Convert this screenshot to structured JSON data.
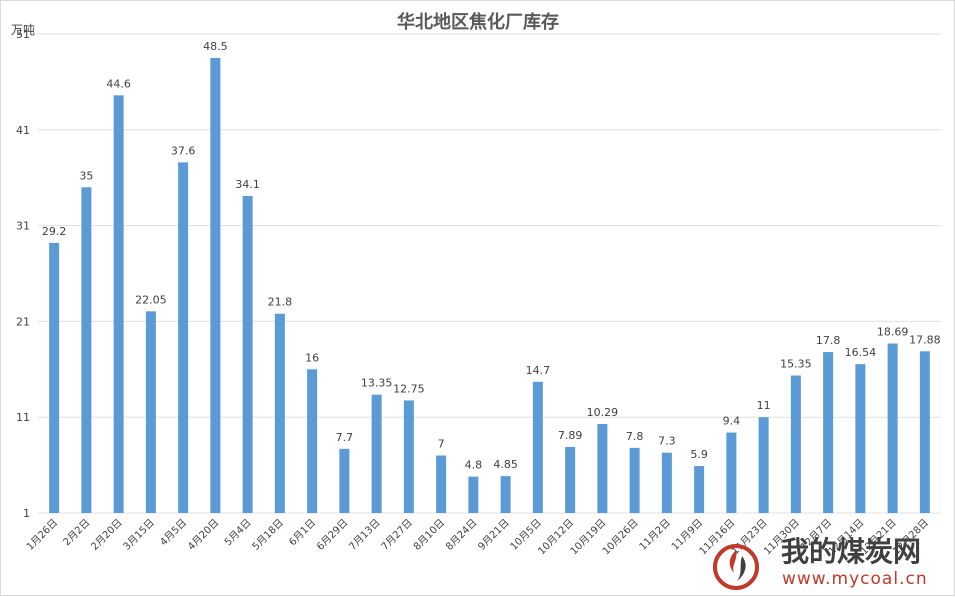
{
  "chart_data": {
    "type": "bar",
    "title": "华北地区焦化厂库存",
    "unit_label": "万吨",
    "ylim": [
      1,
      51
    ],
    "yticks": [
      1,
      11,
      21,
      31,
      41,
      51
    ],
    "grid": true,
    "legend": "none",
    "bar_color": "#5b9bd5",
    "categories": [
      "1月26日",
      "2月2日",
      "2月20日",
      "3月15日",
      "4月5日",
      "4月20日",
      "5月4日",
      "5月18日",
      "6月1日",
      "6月29日",
      "7月13日",
      "7月27日",
      "8月10日",
      "8月24日",
      "9月21日",
      "10月5日",
      "10月12日",
      "10月19日",
      "10月26日",
      "11月2日",
      "11月9日",
      "11月16日",
      "11月23日",
      "11月30日",
      "12月7日",
      "12月14日",
      "12月21日",
      "12月28日"
    ],
    "values": [
      29.2,
      35,
      44.6,
      22.05,
      37.6,
      48.5,
      34.1,
      21.8,
      16,
      7.7,
      13.35,
      12.75,
      7,
      4.8,
      4.85,
      14.7,
      7.89,
      10.29,
      7.8,
      7.3,
      5.9,
      9.4,
      11,
      15.35,
      17.8,
      16.54,
      18.69,
      17.88
    ],
    "value_labels": [
      "29.2",
      "35",
      "44.6",
      "22.05",
      "37.6",
      "48.5",
      "34.1",
      "21.8",
      "16",
      "7.7",
      "13.35",
      "12.75",
      "7",
      "4.8",
      "4.85",
      "14.7",
      "7.89",
      "10.29",
      "7.8",
      "7.3",
      "5.9",
      "9.4",
      "11",
      "15.35",
      "17.8",
      "16.54",
      "18.69",
      "17.88"
    ]
  },
  "watermark": {
    "logo_icon": "flame-logo-icon",
    "text": "我的煤炭网",
    "url": "www.mycoal.cn",
    "accent_color": "#c0392b"
  }
}
